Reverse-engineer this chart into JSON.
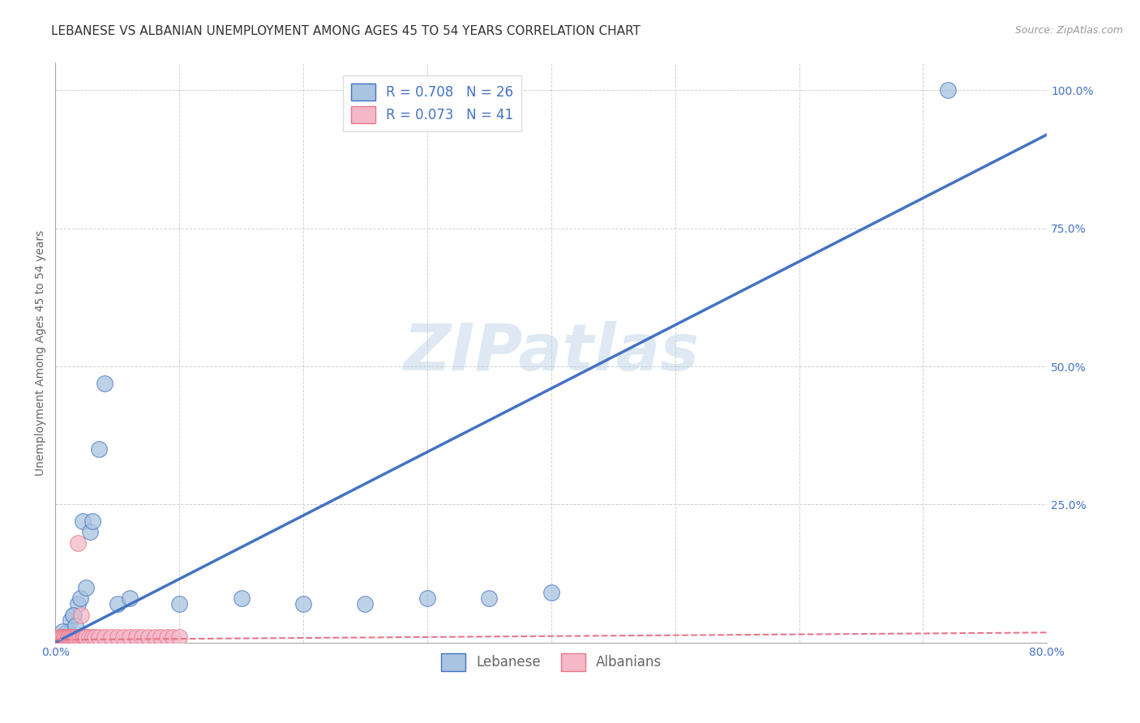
{
  "title": "LEBANESE VS ALBANIAN UNEMPLOYMENT AMONG AGES 45 TO 54 YEARS CORRELATION CHART",
  "source": "Source: ZipAtlas.com",
  "ylabel": "Unemployment Among Ages 45 to 54 years",
  "xlim": [
    0.0,
    0.8
  ],
  "ylim": [
    0.0,
    1.05
  ],
  "xticks": [
    0.0,
    0.1,
    0.2,
    0.3,
    0.4,
    0.5,
    0.6,
    0.7,
    0.8
  ],
  "xticklabels": [
    "0.0%",
    "",
    "",
    "",
    "",
    "",
    "",
    "",
    "80.0%"
  ],
  "yticks": [
    0.0,
    0.25,
    0.5,
    0.75,
    1.0
  ],
  "yticklabels": [
    "",
    "25.0%",
    "50.0%",
    "75.0%",
    "100.0%"
  ],
  "watermark": "ZIPatlas",
  "lebanese_color": "#a8c4e0",
  "albanian_color": "#f4b8c8",
  "lebanese_line_color": "#4472c4",
  "albanian_trend_color": "#e8768a",
  "R_lebanese": 0.708,
  "N_lebanese": 26,
  "R_albanian": 0.073,
  "N_albanian": 41,
  "lebanese_x": [
    0.005,
    0.008,
    0.01,
    0.012,
    0.015,
    0.018,
    0.02,
    0.022,
    0.025,
    0.028,
    0.03,
    0.035,
    0.04,
    0.05,
    0.06,
    0.1,
    0.15,
    0.2,
    0.25,
    0.3,
    0.35,
    0.4,
    0.006,
    0.014,
    0.016,
    0.72
  ],
  "lebanese_y": [
    0.01,
    0.015,
    0.02,
    0.04,
    0.05,
    0.07,
    0.08,
    0.22,
    0.1,
    0.2,
    0.22,
    0.35,
    0.47,
    0.07,
    0.08,
    0.07,
    0.08,
    0.07,
    0.07,
    0.08,
    0.08,
    0.09,
    0.02,
    0.05,
    0.03,
    1.0
  ],
  "albanian_x": [
    0.003,
    0.004,
    0.005,
    0.006,
    0.007,
    0.008,
    0.009,
    0.01,
    0.01,
    0.011,
    0.012,
    0.013,
    0.014,
    0.015,
    0.016,
    0.017,
    0.018,
    0.019,
    0.02,
    0.021,
    0.022,
    0.023,
    0.024,
    0.025,
    0.027,
    0.03,
    0.032,
    0.035,
    0.04,
    0.045,
    0.05,
    0.055,
    0.06,
    0.065,
    0.07,
    0.075,
    0.08,
    0.085,
    0.09,
    0.095,
    0.1
  ],
  "albanian_y": [
    0.01,
    0.01,
    0.01,
    0.01,
    0.01,
    0.01,
    0.01,
    0.01,
    0.01,
    0.01,
    0.01,
    0.01,
    0.01,
    0.01,
    0.01,
    0.01,
    0.18,
    0.01,
    0.01,
    0.05,
    0.01,
    0.01,
    0.01,
    0.01,
    0.01,
    0.01,
    0.01,
    0.01,
    0.01,
    0.01,
    0.01,
    0.01,
    0.01,
    0.01,
    0.01,
    0.01,
    0.01,
    0.01,
    0.01,
    0.01,
    0.01
  ],
  "leb_line_x": [
    0.0,
    0.8
  ],
  "leb_line_y": [
    0.0,
    0.92
  ],
  "alb_line_x": [
    0.0,
    0.8
  ],
  "alb_line_y": [
    0.005,
    0.018
  ],
  "grid_color": "#cccccc",
  "background_color": "#ffffff",
  "title_fontsize": 11,
  "label_fontsize": 10,
  "tick_fontsize": 10,
  "legend_label_lebanese": "Lebanese",
  "legend_label_albanians": "Albanians"
}
